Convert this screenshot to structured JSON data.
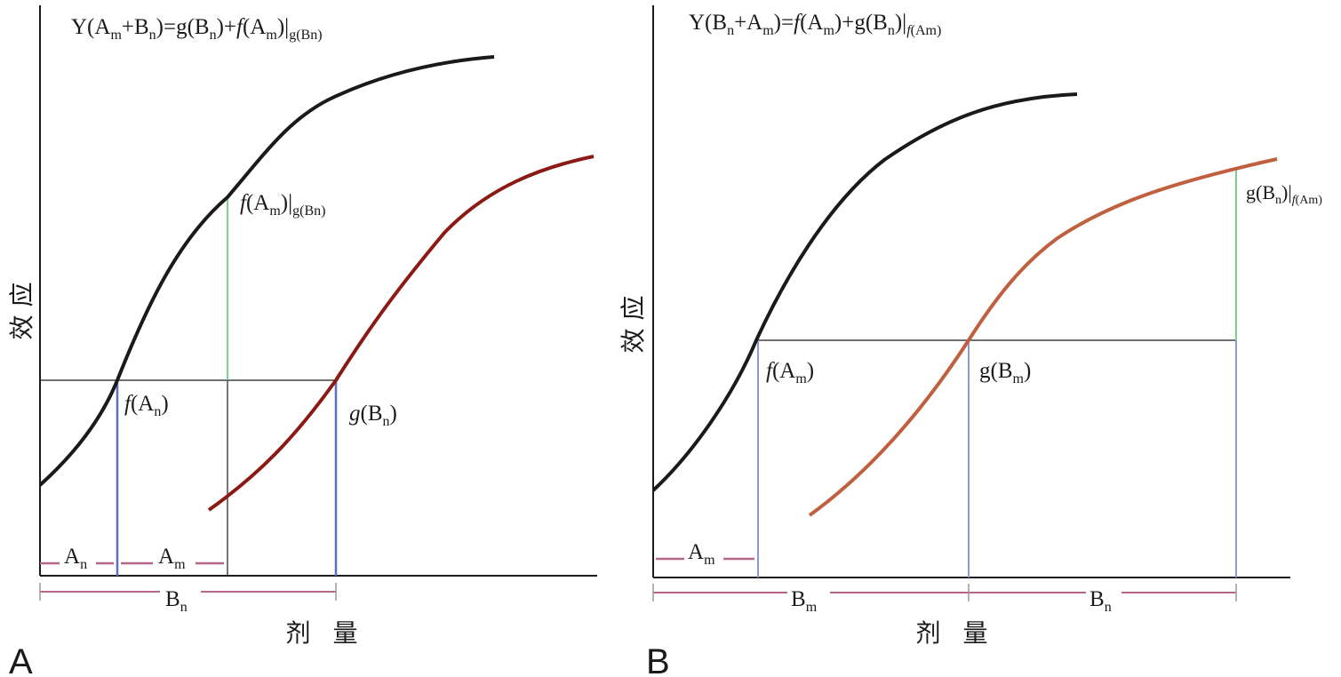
{
  "panel_a": {
    "letter": "A",
    "formula": {
      "p1": "Y(A",
      "s1": "m",
      "p2": "+B",
      "s2": "n",
      "p3": ")=g(B",
      "s3": "n",
      "p4": ")+",
      "f": "f",
      "p5": "(A",
      "s4": "m",
      "p6": ")|",
      "s5": "g(Bn)"
    },
    "y_label": "效 应",
    "x_label": "剂 量",
    "label_fAm_g": {
      "f": "f",
      "p1": "(A",
      "s1": "m",
      "p2": ")|",
      "s2": "g(Bn)"
    },
    "label_fAn": {
      "f": "f",
      "p1": "(A",
      "s1": "n",
      "p2": ")"
    },
    "label_gBn": {
      "p1": "g(B",
      "s1": "n",
      "p2": ")"
    },
    "dose_An": {
      "p": "A",
      "s": "n"
    },
    "dose_Am": {
      "p": "A",
      "s": "m"
    },
    "dose_Bn": {
      "p": "B",
      "s": "n"
    },
    "colors": {
      "curve_a": "#1a1a1a",
      "curve_b": "#8b1a14",
      "guide_vertical": "#5b6fc4",
      "increment": "#7fcf95",
      "dose_bar": "#b5678a"
    }
  },
  "panel_b": {
    "letter": "B",
    "formula": {
      "p1": "Y(B",
      "s1": "n",
      "p2": "+A",
      "s2": "m",
      "p3": ")=",
      "f": "f",
      "p4": "(A",
      "s3": "m",
      "p5": ")+g(B",
      "s4": "n",
      "p6": ")|",
      "s5f": "f",
      "s5": "(Am)"
    },
    "y_label": "效 应",
    "x_label": "剂 量",
    "label_fAm": {
      "f": "f",
      "p1": "(A",
      "s1": "m",
      "p2": ")"
    },
    "label_gBm": {
      "p1": "g(B",
      "s1": "m",
      "p2": ")"
    },
    "label_gBn_f": {
      "p1": "g(B",
      "s1": "n",
      "p2": ")|",
      "s2f": "f",
      "s2": "(Am)"
    },
    "dose_Am": {
      "p": "A",
      "s": "m"
    },
    "dose_Bm": {
      "p": "B",
      "s": "m"
    },
    "dose_Bn": {
      "p": "B",
      "s": "n"
    },
    "colors": {
      "curve_a": "#1a1a1a",
      "curve_b": "#c0603f",
      "guide_vertical": "#8e9ad6",
      "increment": "#7fcf95",
      "dose_bar": "#b5678a"
    }
  }
}
